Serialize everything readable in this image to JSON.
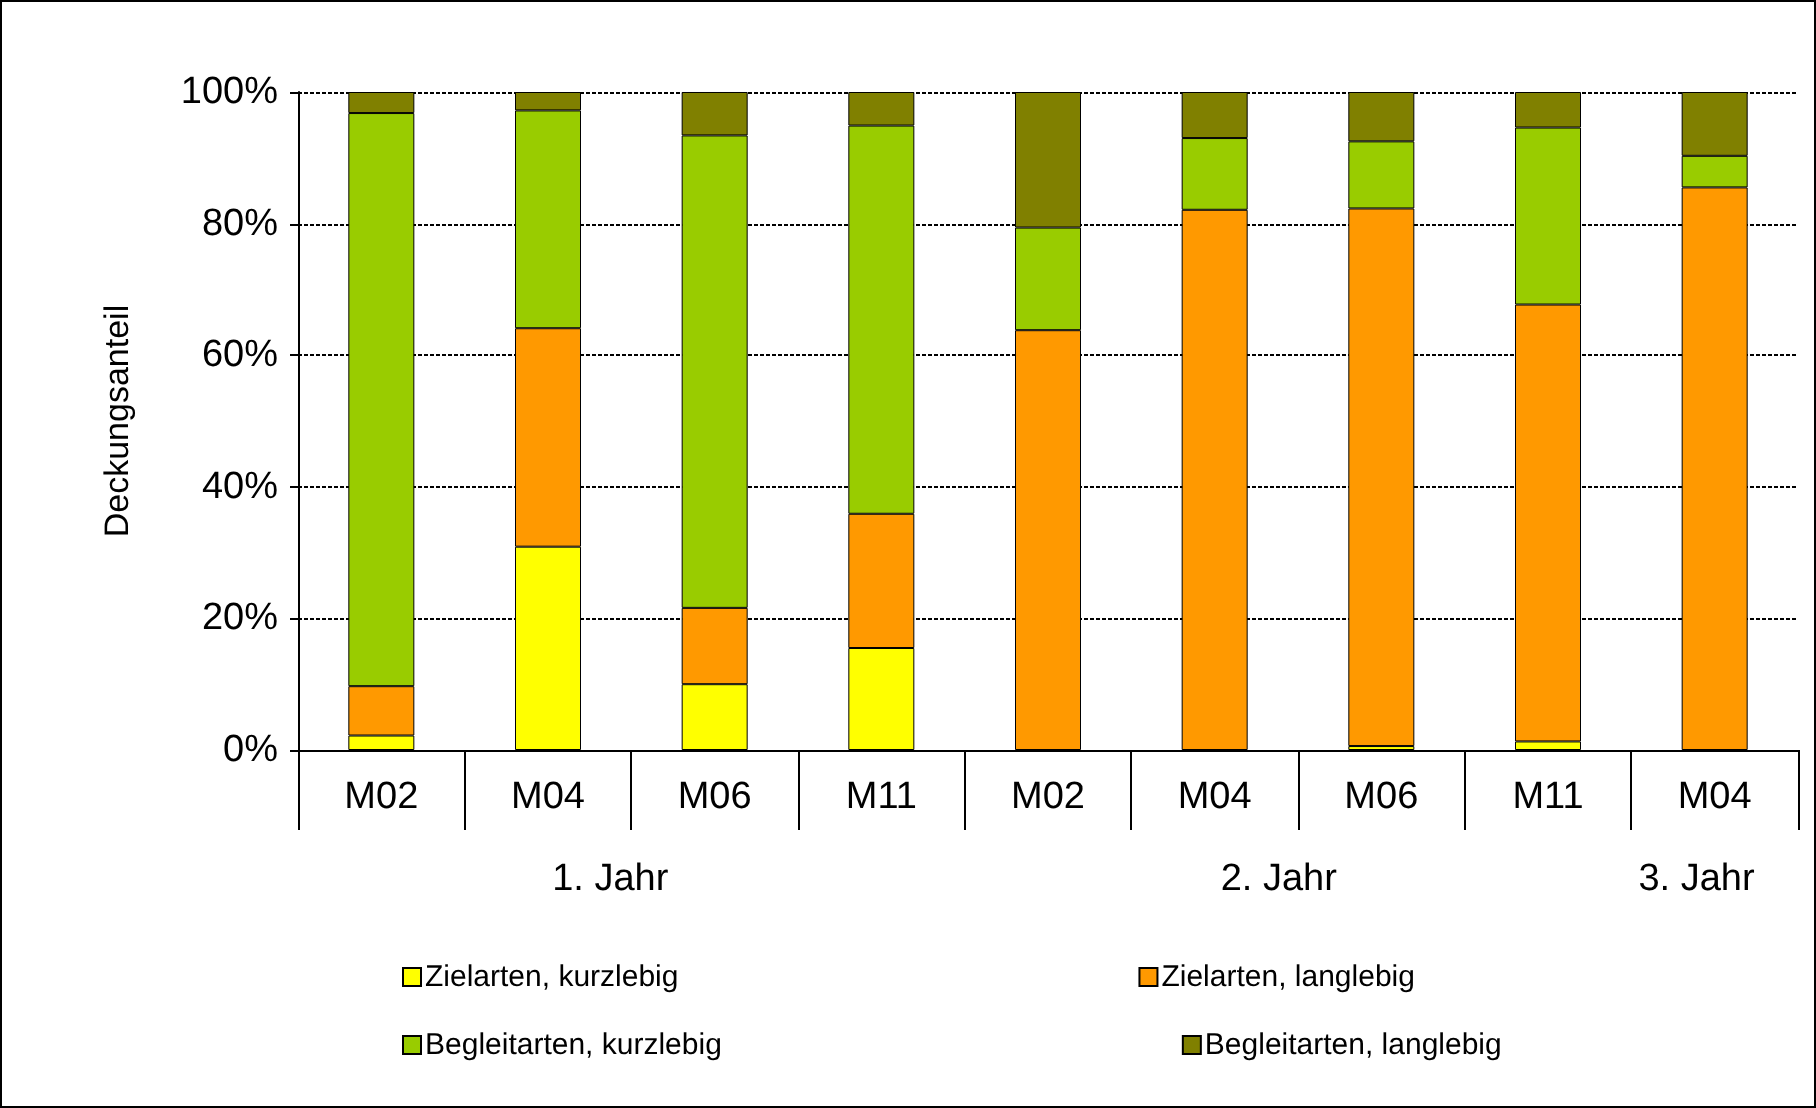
{
  "chart_data": {
    "type": "bar",
    "stacked": true,
    "ylabel": "Deckungsanteil",
    "categories": [
      "M02",
      "M04",
      "M06",
      "M11",
      "M02",
      "M04",
      "M06",
      "M11",
      "M04"
    ],
    "annotations": [
      "1. Jahr",
      "2. Jahr",
      "3. Jahr"
    ],
    "series": [
      {
        "name": "Zielarten, kurzlebig",
        "color": "#ffff00",
        "values": [
          2.2,
          30.9,
          10.0,
          15.5,
          0,
          0,
          0.6,
          1.3,
          0
        ]
      },
      {
        "name": "Zielarten, langlebig",
        "color": "#ff9900",
        "values": [
          7.5,
          33.2,
          11.6,
          20.4,
          63.8,
          82.1,
          81.7,
          66.4,
          85.5
        ]
      },
      {
        "name": "Begleitarten, kurzlebig",
        "color": "#99cc00",
        "values": [
          87.1,
          33.1,
          71.8,
          59.0,
          15.6,
          10.9,
          10.2,
          26.9,
          4.8
        ]
      },
      {
        "name": "Begleitarten, langlebig",
        "color": "#808000",
        "values": [
          3.2,
          2.8,
          6.6,
          5.1,
          20.6,
          7.0,
          7.5,
          5.4,
          9.7
        ]
      }
    ],
    "ylim": [
      0,
      100
    ],
    "yticks": [
      {
        "value": 0,
        "label": "0%"
      },
      {
        "value": 20,
        "label": "20%"
      },
      {
        "value": 40,
        "label": "40%"
      },
      {
        "value": 60,
        "label": "60%"
      },
      {
        "value": 80,
        "label": "80%"
      },
      {
        "value": 100,
        "label": "100%"
      }
    ],
    "grid": "y",
    "legend": "bottom"
  }
}
